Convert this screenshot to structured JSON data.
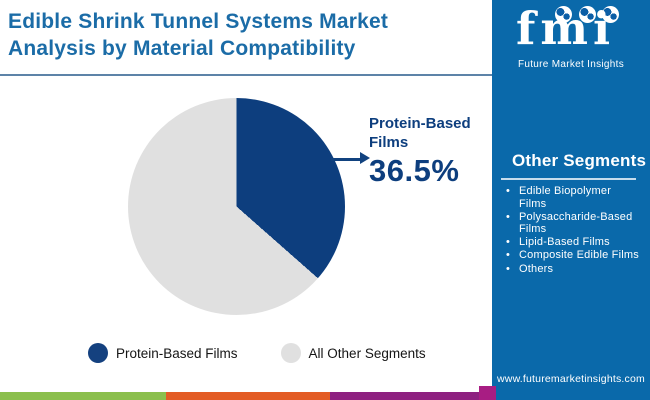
{
  "header": {
    "title": "Edible Shrink Tunnel Systems Market Analysis by Material Compatibility"
  },
  "chart_data": {
    "type": "pie",
    "title": "Edible Shrink Tunnel Systems Market Analysis by Material Compatibility",
    "slices": [
      {
        "label": "Protein-Based Films",
        "value": 36.5,
        "color": "#0d3e7e"
      },
      {
        "label": "All Other Segments",
        "value": 63.5,
        "color": "#e0e0e0"
      }
    ],
    "start_angle_deg": 0,
    "direction": "clockwise",
    "callout": {
      "label": "Protein-Based Films",
      "value_text": "36.5%"
    },
    "legend": [
      {
        "label": "Protein-Based Films",
        "color": "#14417f"
      },
      {
        "label": "All Other Segments",
        "color": "#e0e0e0"
      }
    ],
    "legend_position": "bottom"
  },
  "sidebar": {
    "logo": {
      "text": "fmi",
      "tagline": "Future Market Insights"
    },
    "other_segments": {
      "heading": "Other Segments",
      "items": [
        "Edible Biopolymer Films",
        "Polysaccharide-Based Films",
        "Lipid-Based Films",
        "Composite Edible Films",
        "Others"
      ]
    },
    "website": "www.futuremarketinsights.com"
  },
  "brand_colors": {
    "title_blue": "#1b6ca7",
    "sidebar_blue": "#0a69aa",
    "pie_navy": "#0d3e7e",
    "pie_gray": "#e0e0e0",
    "bar_green": "#8bbf4d",
    "bar_orange": "#e35c25",
    "bar_purple": "#8e2080",
    "corner_magenta": "#a81d83"
  }
}
